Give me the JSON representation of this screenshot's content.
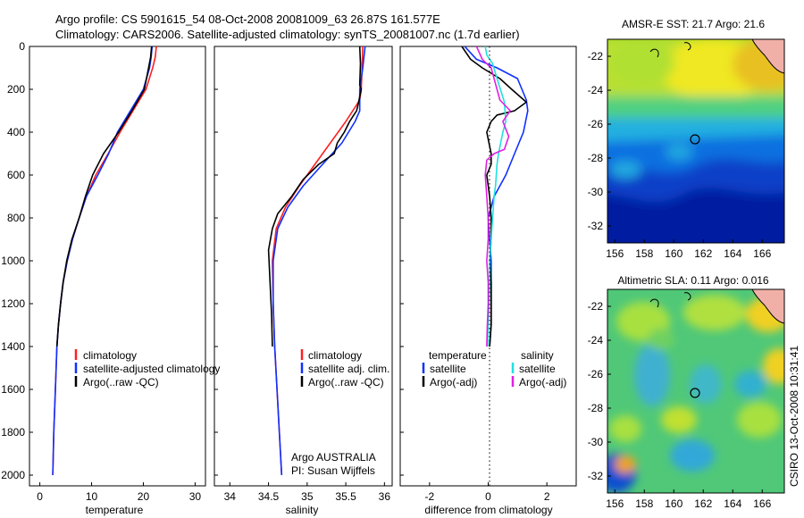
{
  "header": {
    "line1": "Argo profile: CS 5901615_54 08-Oct-2008 20081009_63 26.87S 161.577E",
    "line2": "Climatology: CARS2006. Satellite-adjusted climatology: synTS_20081007.nc (1.7d earlier)"
  },
  "side_label": "CSIRO 13-Oct-2008 10:31:41",
  "colors": {
    "climatology": "#ff2020",
    "satellite": "#1030ff",
    "argo": "#000000",
    "sat_sal": "#20e0e0",
    "argo_adj_sal": "#e020e0"
  },
  "chart_data": [
    {
      "id": "temperature",
      "type": "line",
      "xlabel": "temperature",
      "ylabel": "",
      "xlim": [
        -2,
        32
      ],
      "ylim": [
        2050,
        0
      ],
      "xticks": [
        0,
        10,
        20,
        30
      ],
      "yticks": [
        0,
        200,
        400,
        600,
        800,
        1000,
        1200,
        1400,
        1600,
        1800,
        2000
      ],
      "legend": [
        "climatology",
        "satellite-adjusted climatology",
        "Argo(..raw -QC)"
      ],
      "series": [
        {
          "name": "climatology",
          "color": "#ff2020",
          "points": [
            [
              22.5,
              0
            ],
            [
              22.3,
              50
            ],
            [
              21.8,
              100
            ],
            [
              20.5,
              200
            ],
            [
              18,
              300
            ],
            [
              15.5,
              400
            ],
            [
              13.2,
              500
            ],
            [
              10.8,
              600
            ],
            [
              9,
              700
            ],
            [
              7.6,
              800
            ],
            [
              6.3,
              900
            ],
            [
              5.3,
              1000
            ],
            [
              4.5,
              1100
            ],
            [
              4,
              1200
            ],
            [
              3.6,
              1300
            ],
            [
              3.3,
              1400
            ],
            [
              3.0,
              1600
            ],
            [
              2.7,
              1800
            ],
            [
              2.5,
              2000
            ]
          ]
        },
        {
          "name": "satellite-adjusted climatology",
          "color": "#1030ff",
          "points": [
            [
              21.7,
              0
            ],
            [
              21.5,
              50
            ],
            [
              21.2,
              100
            ],
            [
              20,
              200
            ],
            [
              17.5,
              300
            ],
            [
              15,
              400
            ],
            [
              13.3,
              500
            ],
            [
              11.2,
              600
            ],
            [
              9,
              700
            ],
            [
              7.6,
              800
            ],
            [
              6.3,
              900
            ],
            [
              5.3,
              1000
            ],
            [
              4.5,
              1100
            ],
            [
              4,
              1200
            ],
            [
              3.6,
              1300
            ],
            [
              3.3,
              1400
            ],
            [
              3.0,
              1600
            ],
            [
              2.7,
              1800
            ],
            [
              2.5,
              2000
            ]
          ]
        },
        {
          "name": "Argo(..raw -QC)",
          "color": "#000000",
          "points": [
            [
              21.6,
              0
            ],
            [
              21.4,
              50
            ],
            [
              21,
              100
            ],
            [
              20.2,
              200
            ],
            [
              17.8,
              300
            ],
            [
              15.2,
              400
            ],
            [
              12.3,
              500
            ],
            [
              10.2,
              600
            ],
            [
              8.8,
              700
            ],
            [
              7.6,
              800
            ],
            [
              6.2,
              900
            ],
            [
              5.2,
              1000
            ],
            [
              4.5,
              1100
            ],
            [
              4,
              1200
            ],
            [
              3.6,
              1300
            ],
            [
              3.3,
              1400
            ]
          ]
        }
      ]
    },
    {
      "id": "salinity",
      "type": "line",
      "xlabel": "salinity",
      "ylabel": "",
      "xlim": [
        33.8,
        36.1
      ],
      "ylim": [
        2050,
        0
      ],
      "xticks": [
        34,
        34.5,
        35,
        35.5,
        36
      ],
      "legend": [
        "climatology",
        "satellite adj. clim.",
        "Argo(..raw -QC)"
      ],
      "annotation": [
        "Argo AUSTRALIA",
        "PI: Susan Wijffels"
      ],
      "series": [
        {
          "name": "climatology",
          "color": "#ff2020",
          "points": [
            [
              35.72,
              0
            ],
            [
              35.71,
              100
            ],
            [
              35.7,
              200
            ],
            [
              35.68,
              250
            ],
            [
              35.5,
              350
            ],
            [
              35.3,
              450
            ],
            [
              35.1,
              550
            ],
            [
              34.9,
              650
            ],
            [
              34.72,
              750
            ],
            [
              34.6,
              850
            ],
            [
              34.55,
              1000
            ],
            [
              34.56,
              1200
            ],
            [
              34.58,
              1400
            ],
            [
              34.61,
              1600
            ],
            [
              34.64,
              1800
            ],
            [
              34.67,
              2000
            ]
          ]
        },
        {
          "name": "satellite adj. clim.",
          "color": "#1030ff",
          "points": [
            [
              35.75,
              0
            ],
            [
              35.72,
              100
            ],
            [
              35.68,
              200
            ],
            [
              35.68,
              300
            ],
            [
              35.62,
              350
            ],
            [
              35.45,
              450
            ],
            [
              35.2,
              550
            ],
            [
              34.95,
              650
            ],
            [
              34.75,
              750
            ],
            [
              34.62,
              850
            ],
            [
              34.56,
              1000
            ],
            [
              34.56,
              1200
            ],
            [
              34.58,
              1400
            ],
            [
              34.61,
              1600
            ],
            [
              34.64,
              1800
            ],
            [
              34.67,
              2000
            ]
          ]
        },
        {
          "name": "Argo(..raw -QC)",
          "color": "#000000",
          "points": [
            [
              35.68,
              0
            ],
            [
              35.69,
              80
            ],
            [
              35.68,
              180
            ],
            [
              35.7,
              200
            ],
            [
              35.66,
              270
            ],
            [
              35.64,
              300
            ],
            [
              35.55,
              350
            ],
            [
              35.48,
              400
            ],
            [
              35.39,
              450
            ],
            [
              35.35,
              500
            ],
            [
              35.15,
              550
            ],
            [
              34.95,
              620
            ],
            [
              34.8,
              700
            ],
            [
              34.62,
              780
            ],
            [
              34.55,
              850
            ],
            [
              34.5,
              950
            ],
            [
              34.52,
              1100
            ],
            [
              34.54,
              1250
            ],
            [
              34.55,
              1400
            ]
          ]
        }
      ]
    },
    {
      "id": "difference",
      "type": "line",
      "xlabel": "difference from climatology",
      "ylabel": "",
      "xlim": [
        -3.0,
        3.0
      ],
      "ylim": [
        2050,
        0
      ],
      "xticks": [
        -2,
        0,
        2
      ],
      "legend_titles": [
        "temperature",
        "salinity"
      ],
      "legend": [
        "satellite",
        "Argo(-adj)",
        "satellite",
        "Argo(-adj)"
      ],
      "series": [
        {
          "name": "temperature satellite",
          "color": "#1030ff",
          "points": [
            [
              -0.8,
              0
            ],
            [
              -0.4,
              60
            ],
            [
              0.3,
              100
            ],
            [
              1,
              150
            ],
            [
              1.3,
              250
            ],
            [
              1.35,
              300
            ],
            [
              1.2,
              400
            ],
            [
              0.9,
              500
            ],
            [
              0.6,
              600
            ],
            [
              0.2,
              700
            ],
            [
              0,
              800
            ],
            [
              0.05,
              900
            ],
            [
              0.1,
              1000
            ],
            [
              0.1,
              1100
            ],
            [
              0.1,
              1200
            ],
            [
              0.1,
              1300
            ],
            [
              0.05,
              1400
            ]
          ]
        },
        {
          "name": "temperature Argo(-adj)",
          "color": "#000000",
          "points": [
            [
              -0.9,
              0
            ],
            [
              -0.6,
              60
            ],
            [
              -0.2,
              100
            ],
            [
              0.4,
              150
            ],
            [
              0.8,
              200
            ],
            [
              1.3,
              260
            ],
            [
              0.9,
              300
            ],
            [
              0.3,
              320
            ],
            [
              0.1,
              350
            ],
            [
              -0.05,
              400
            ],
            [
              0.1,
              500
            ],
            [
              0.1,
              550
            ],
            [
              -0.05,
              600
            ],
            [
              0.05,
              700
            ],
            [
              0.1,
              800
            ],
            [
              0.1,
              900
            ],
            [
              0.05,
              1000
            ],
            [
              0.1,
              1100
            ],
            [
              0.1,
              1200
            ],
            [
              0.1,
              1300
            ],
            [
              0.05,
              1400
            ]
          ]
        },
        {
          "name": "salinity satellite",
          "color": "#20e0e0",
          "points": [
            [
              -0.1,
              0
            ],
            [
              -0.05,
              40
            ],
            [
              0.15,
              80
            ],
            [
              0.3,
              150
            ],
            [
              0.55,
              260
            ],
            [
              0.6,
              350
            ],
            [
              0.5,
              400
            ],
            [
              0.35,
              500
            ],
            [
              0.3,
              550
            ],
            [
              0.25,
              650
            ],
            [
              0.2,
              700
            ],
            [
              0.15,
              800
            ],
            [
              0.1,
              900
            ],
            [
              0.05,
              1000
            ],
            [
              0.05,
              1100
            ],
            [
              0.03,
              1200
            ],
            [
              0,
              1300
            ],
            [
              -0.02,
              1400
            ]
          ]
        },
        {
          "name": "salinity Argo(-adj)",
          "color": "#e020e0",
          "points": [
            [
              -0.4,
              0
            ],
            [
              -0.2,
              60
            ],
            [
              0.1,
              100
            ],
            [
              0.2,
              150
            ],
            [
              0.4,
              250
            ],
            [
              0.75,
              300
            ],
            [
              0.5,
              350
            ],
            [
              0.7,
              420
            ],
            [
              0.55,
              480
            ],
            [
              0.2,
              500
            ],
            [
              -0.05,
              530
            ],
            [
              -0.1,
              600
            ],
            [
              -0.05,
              700
            ],
            [
              0,
              800
            ],
            [
              0,
              900
            ],
            [
              -0.05,
              1000
            ],
            [
              0,
              1100
            ],
            [
              0,
              1200
            ],
            [
              -0.03,
              1300
            ],
            [
              -0.05,
              1400
            ]
          ]
        }
      ]
    },
    {
      "id": "sst_map",
      "type": "heatmap",
      "title": "AMSR-E SST: 21.7  Argo: 21.6",
      "xlim": [
        155.5,
        167.5
      ],
      "ylim": [
        -33,
        -21
      ],
      "xticks": [
        156,
        158,
        160,
        162,
        164,
        166
      ],
      "yticks": [
        -22,
        -24,
        -26,
        -28,
        -30,
        -32
      ],
      "marker": [
        161.577,
        -26.87
      ]
    },
    {
      "id": "sla_map",
      "type": "heatmap",
      "title": "Altimetric SLA: 0.11  Argo: 0.016",
      "xlim": [
        155.5,
        167.5
      ],
      "ylim": [
        -33,
        -21
      ],
      "xticks": [
        156,
        158,
        160,
        162,
        164,
        166
      ],
      "yticks": [
        -22,
        -24,
        -26,
        -28,
        -30,
        -32
      ],
      "marker": [
        161.577,
        -26.87
      ]
    }
  ]
}
